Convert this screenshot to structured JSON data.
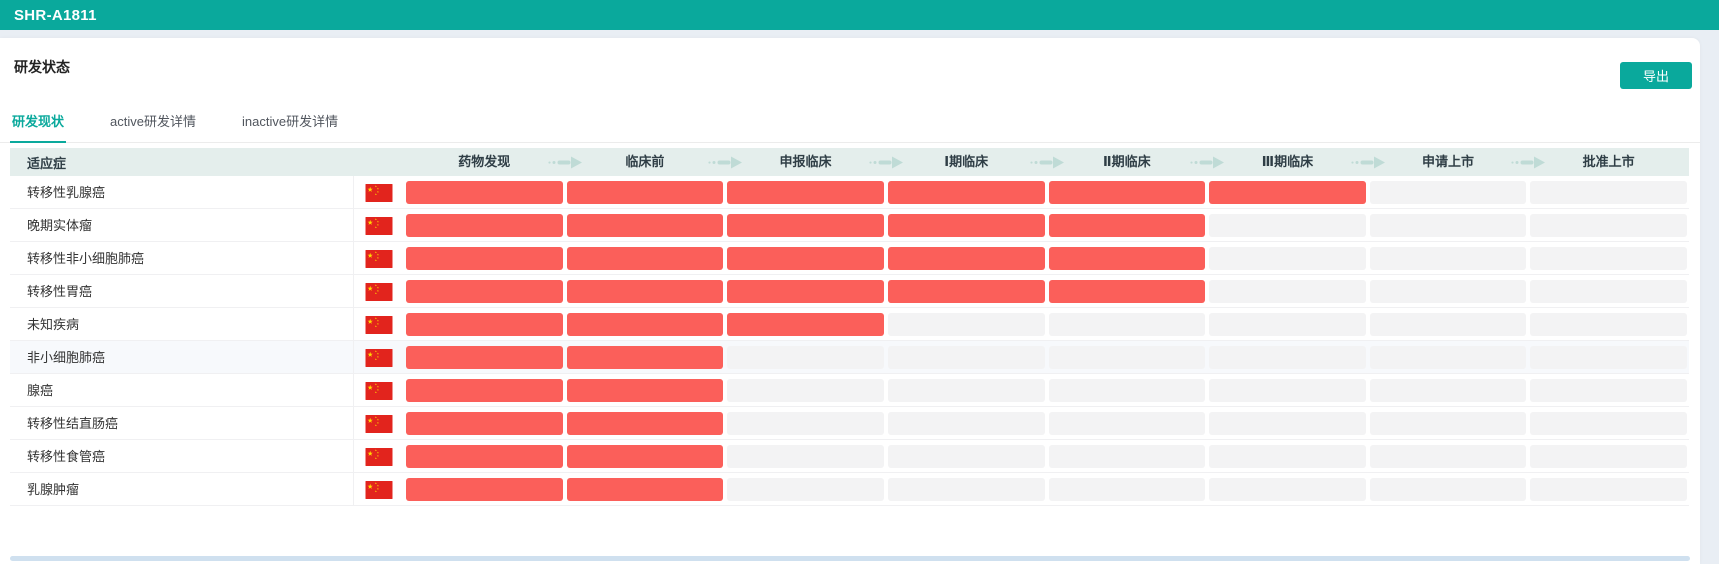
{
  "window": {
    "title": "SHR-A1811"
  },
  "page": {
    "heading": "研发状态"
  },
  "toolbar": {
    "export_label": "导出"
  },
  "tabs": [
    {
      "label": "研发现状",
      "active": true
    },
    {
      "label": "active研发详情",
      "active": false
    },
    {
      "label": "inactive研发详情",
      "active": false
    }
  ],
  "table": {
    "indication_header": "适应症",
    "phases": [
      "药物发现",
      "临床前",
      "申报临床",
      "Ⅰ期临床",
      "Ⅱ期临床",
      "Ⅲ期临床",
      "申请上市",
      "批准上市"
    ],
    "rows": [
      {
        "indication": "转移性乳腺癌",
        "region_flag": "china-flag",
        "phases_completed": 6,
        "highlight": false
      },
      {
        "indication": "晚期实体瘤",
        "region_flag": "china-flag",
        "phases_completed": 5,
        "highlight": false
      },
      {
        "indication": "转移性非小细胞肺癌",
        "region_flag": "china-flag",
        "phases_completed": 5,
        "highlight": false
      },
      {
        "indication": "转移性胃癌",
        "region_flag": "china-flag",
        "phases_completed": 5,
        "highlight": false
      },
      {
        "indication": "未知疾病",
        "region_flag": "china-flag",
        "phases_completed": 3,
        "highlight": false
      },
      {
        "indication": "非小细胞肺癌",
        "region_flag": "china-flag",
        "phases_completed": 2,
        "highlight": true
      },
      {
        "indication": "腺癌",
        "region_flag": "china-flag",
        "phases_completed": 2,
        "highlight": false
      },
      {
        "indication": "转移性结直肠癌",
        "region_flag": "china-flag",
        "phases_completed": 2,
        "highlight": false
      },
      {
        "indication": "转移性食管癌",
        "region_flag": "china-flag",
        "phases_completed": 2,
        "highlight": false
      },
      {
        "indication": "乳腺肿瘤",
        "region_flag": "china-flag",
        "phases_completed": 2,
        "highlight": false
      }
    ],
    "total_phases": 8
  },
  "colors": {
    "accent_teal": "#0aa99c",
    "bar_done": "#fb5f5a",
    "bar_pending": "#f3f3f4",
    "table_header_bg": "#e4eeec",
    "arrow": "#bfdbd6",
    "page_bg": "#e9eef4",
    "flag_red": "#e2241d",
    "flag_star": "#ffde00"
  }
}
